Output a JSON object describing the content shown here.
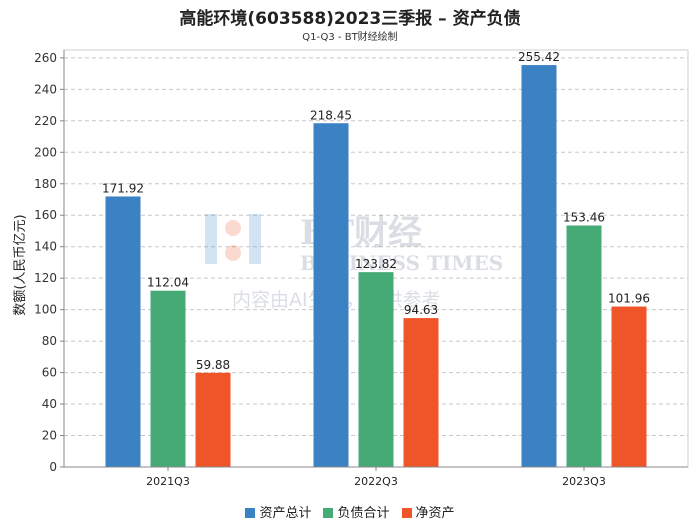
{
  "chart_data": {
    "type": "bar",
    "title": "高能环境(603588)2023三季报 – 资产负债",
    "subtitle": "Q1-Q3 - BT财经绘制",
    "ylabel": "数额(人民币亿元)",
    "xlabel": "",
    "ylim": [
      0,
      265
    ],
    "yticks": [
      0,
      20,
      40,
      60,
      80,
      100,
      120,
      140,
      160,
      180,
      200,
      220,
      240,
      260
    ],
    "grid": true,
    "legend_position": "bottom",
    "categories": [
      "2021Q3",
      "2022Q3",
      "2023Q3"
    ],
    "series": [
      {
        "name": "资产总计",
        "color": "#3a82c4",
        "values": [
          171.92,
          218.45,
          255.42
        ]
      },
      {
        "name": "负债合计",
        "color": "#46aa76",
        "values": [
          112.04,
          123.82,
          153.46
        ]
      },
      {
        "name": "净资产",
        "color": "#f0552a",
        "values": [
          59.88,
          94.63,
          101.96
        ]
      }
    ]
  },
  "watermark": {
    "logo_text": "BT财经",
    "logo_sub": "BUSINESS TIMES",
    "notice": "内容由AI生成，仅供参考"
  }
}
